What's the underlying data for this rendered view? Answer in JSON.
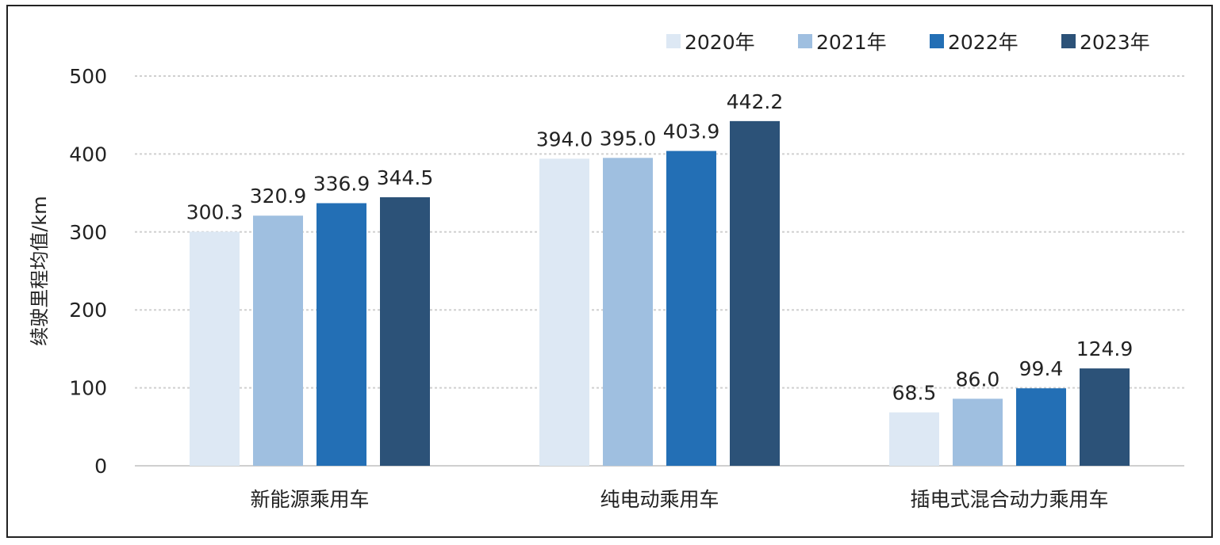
{
  "chart_data": {
    "type": "bar",
    "ylabel": "续驶里程均值/km",
    "ylim": [
      0,
      500
    ],
    "yticks": [
      0,
      100,
      200,
      300,
      400,
      500
    ],
    "grid": true,
    "legend_position": "top-right",
    "categories": [
      "新能源乘用车",
      "纯电动乘用车",
      "插电式混合动力乘用车"
    ],
    "series": [
      {
        "name": "2020年",
        "color": "#dde8f4",
        "values": [
          300.3,
          394.0,
          68.5
        ],
        "labels": [
          "300.3",
          "394.0",
          "68.5"
        ]
      },
      {
        "name": "2021年",
        "color": "#9fbfe0",
        "values": [
          320.9,
          395.0,
          86.0
        ],
        "labels": [
          "320.9",
          "395.0",
          "86.0"
        ]
      },
      {
        "name": "2022年",
        "color": "#236fb5",
        "values": [
          336.9,
          403.9,
          99.4
        ],
        "labels": [
          "336.9",
          "403.9",
          "99.4"
        ]
      },
      {
        "name": "2023年",
        "color": "#2c5278",
        "values": [
          344.5,
          442.2,
          124.9
        ],
        "labels": [
          "344.5",
          "442.2",
          "124.9"
        ]
      }
    ]
  }
}
